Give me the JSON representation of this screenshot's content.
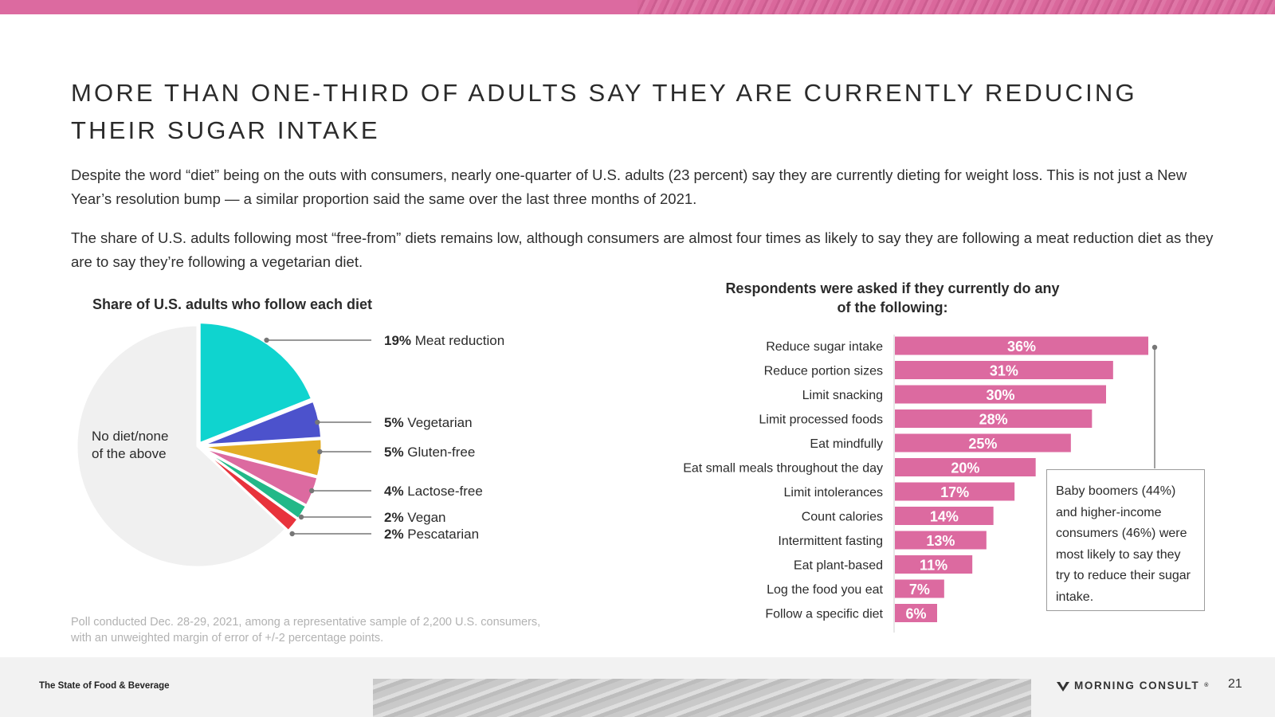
{
  "header": {
    "title": "MORE THAN ONE-THIRD OF ADULTS SAY THEY ARE CURRENTLY REDUCING THEIR SUGAR INTAKE",
    "accent_color": "#dc6aa0"
  },
  "body": {
    "paragraph1": "Despite the word “diet” being on the outs with consumers, nearly one-quarter of U.S. adults (23 percent) say they are currently dieting for weight loss. This is not just a New Year’s resolution bump — a similar proportion said the same over the last three months of 2021.",
    "paragraph2": "The share of U.S. adults following most “free-from” diets remains low, although consumers are almost four times as likely to say they are following a meat reduction diet as they are to say they’re following a vegetarian diet."
  },
  "chart_data": [
    {
      "type": "pie",
      "title": "Share of U.S. adults who follow each diet",
      "slices": [
        {
          "label": "Meat reduction",
          "value": 19,
          "value_label": "19%",
          "color": "#0fd4cf"
        },
        {
          "label": "Vegetarian",
          "value": 5,
          "value_label": "5%",
          "color": "#4c52cc"
        },
        {
          "label": "Gluten-free",
          "value": 5,
          "value_label": "5%",
          "color": "#e3ad26"
        },
        {
          "label": "Lactose-free",
          "value": 4,
          "value_label": "4%",
          "color": "#dc6aa0"
        },
        {
          "label": "Vegan",
          "value": 2,
          "value_label": "2%",
          "color": "#22b888"
        },
        {
          "label": "Pescatarian",
          "value": 2,
          "value_label": "2%",
          "color": "#e8333c"
        },
        {
          "label": "No diet/none of the above",
          "value": 63,
          "value_label": "",
          "color": "#f0f0f0"
        }
      ],
      "remainder_label_line1": "No diet/none",
      "remainder_label_line2": "of the above"
    },
    {
      "type": "bar",
      "orientation": "horizontal",
      "title": "Respondents were asked if they currently do any of the following:",
      "categories": [
        "Reduce sugar intake",
        "Reduce portion sizes",
        "Limit snacking",
        "Limit processed foods",
        "Eat mindfully",
        "Eat small meals throughout the day",
        "Limit intolerances",
        "Count calories",
        "Intermittent fasting",
        "Eat plant-based",
        "Log the food you eat",
        "Follow a specific diet"
      ],
      "values": [
        36,
        31,
        30,
        28,
        25,
        20,
        17,
        14,
        13,
        11,
        7,
        6
      ],
      "value_labels": [
        "36%",
        "31%",
        "30%",
        "28%",
        "25%",
        "20%",
        "17%",
        "14%",
        "13%",
        "11%",
        "7%",
        "6%"
      ],
      "xlim": [
        0,
        36
      ],
      "bar_color": "#dc6aa0"
    }
  ],
  "callout": {
    "text": "Baby boomers (44%) and higher-income consumers (46%) were most likely to say they try to reduce their sugar intake."
  },
  "note": "Poll conducted Dec. 28-29, 2021, among a representative sample of 2,200 U.S. consumers, with an unweighted margin of error of +/-2 percentage points.",
  "footer": {
    "report_title": "The State of Food & Beverage",
    "brand": "MORNING CONSULT",
    "brand_mark": "®",
    "page_number": "21"
  }
}
